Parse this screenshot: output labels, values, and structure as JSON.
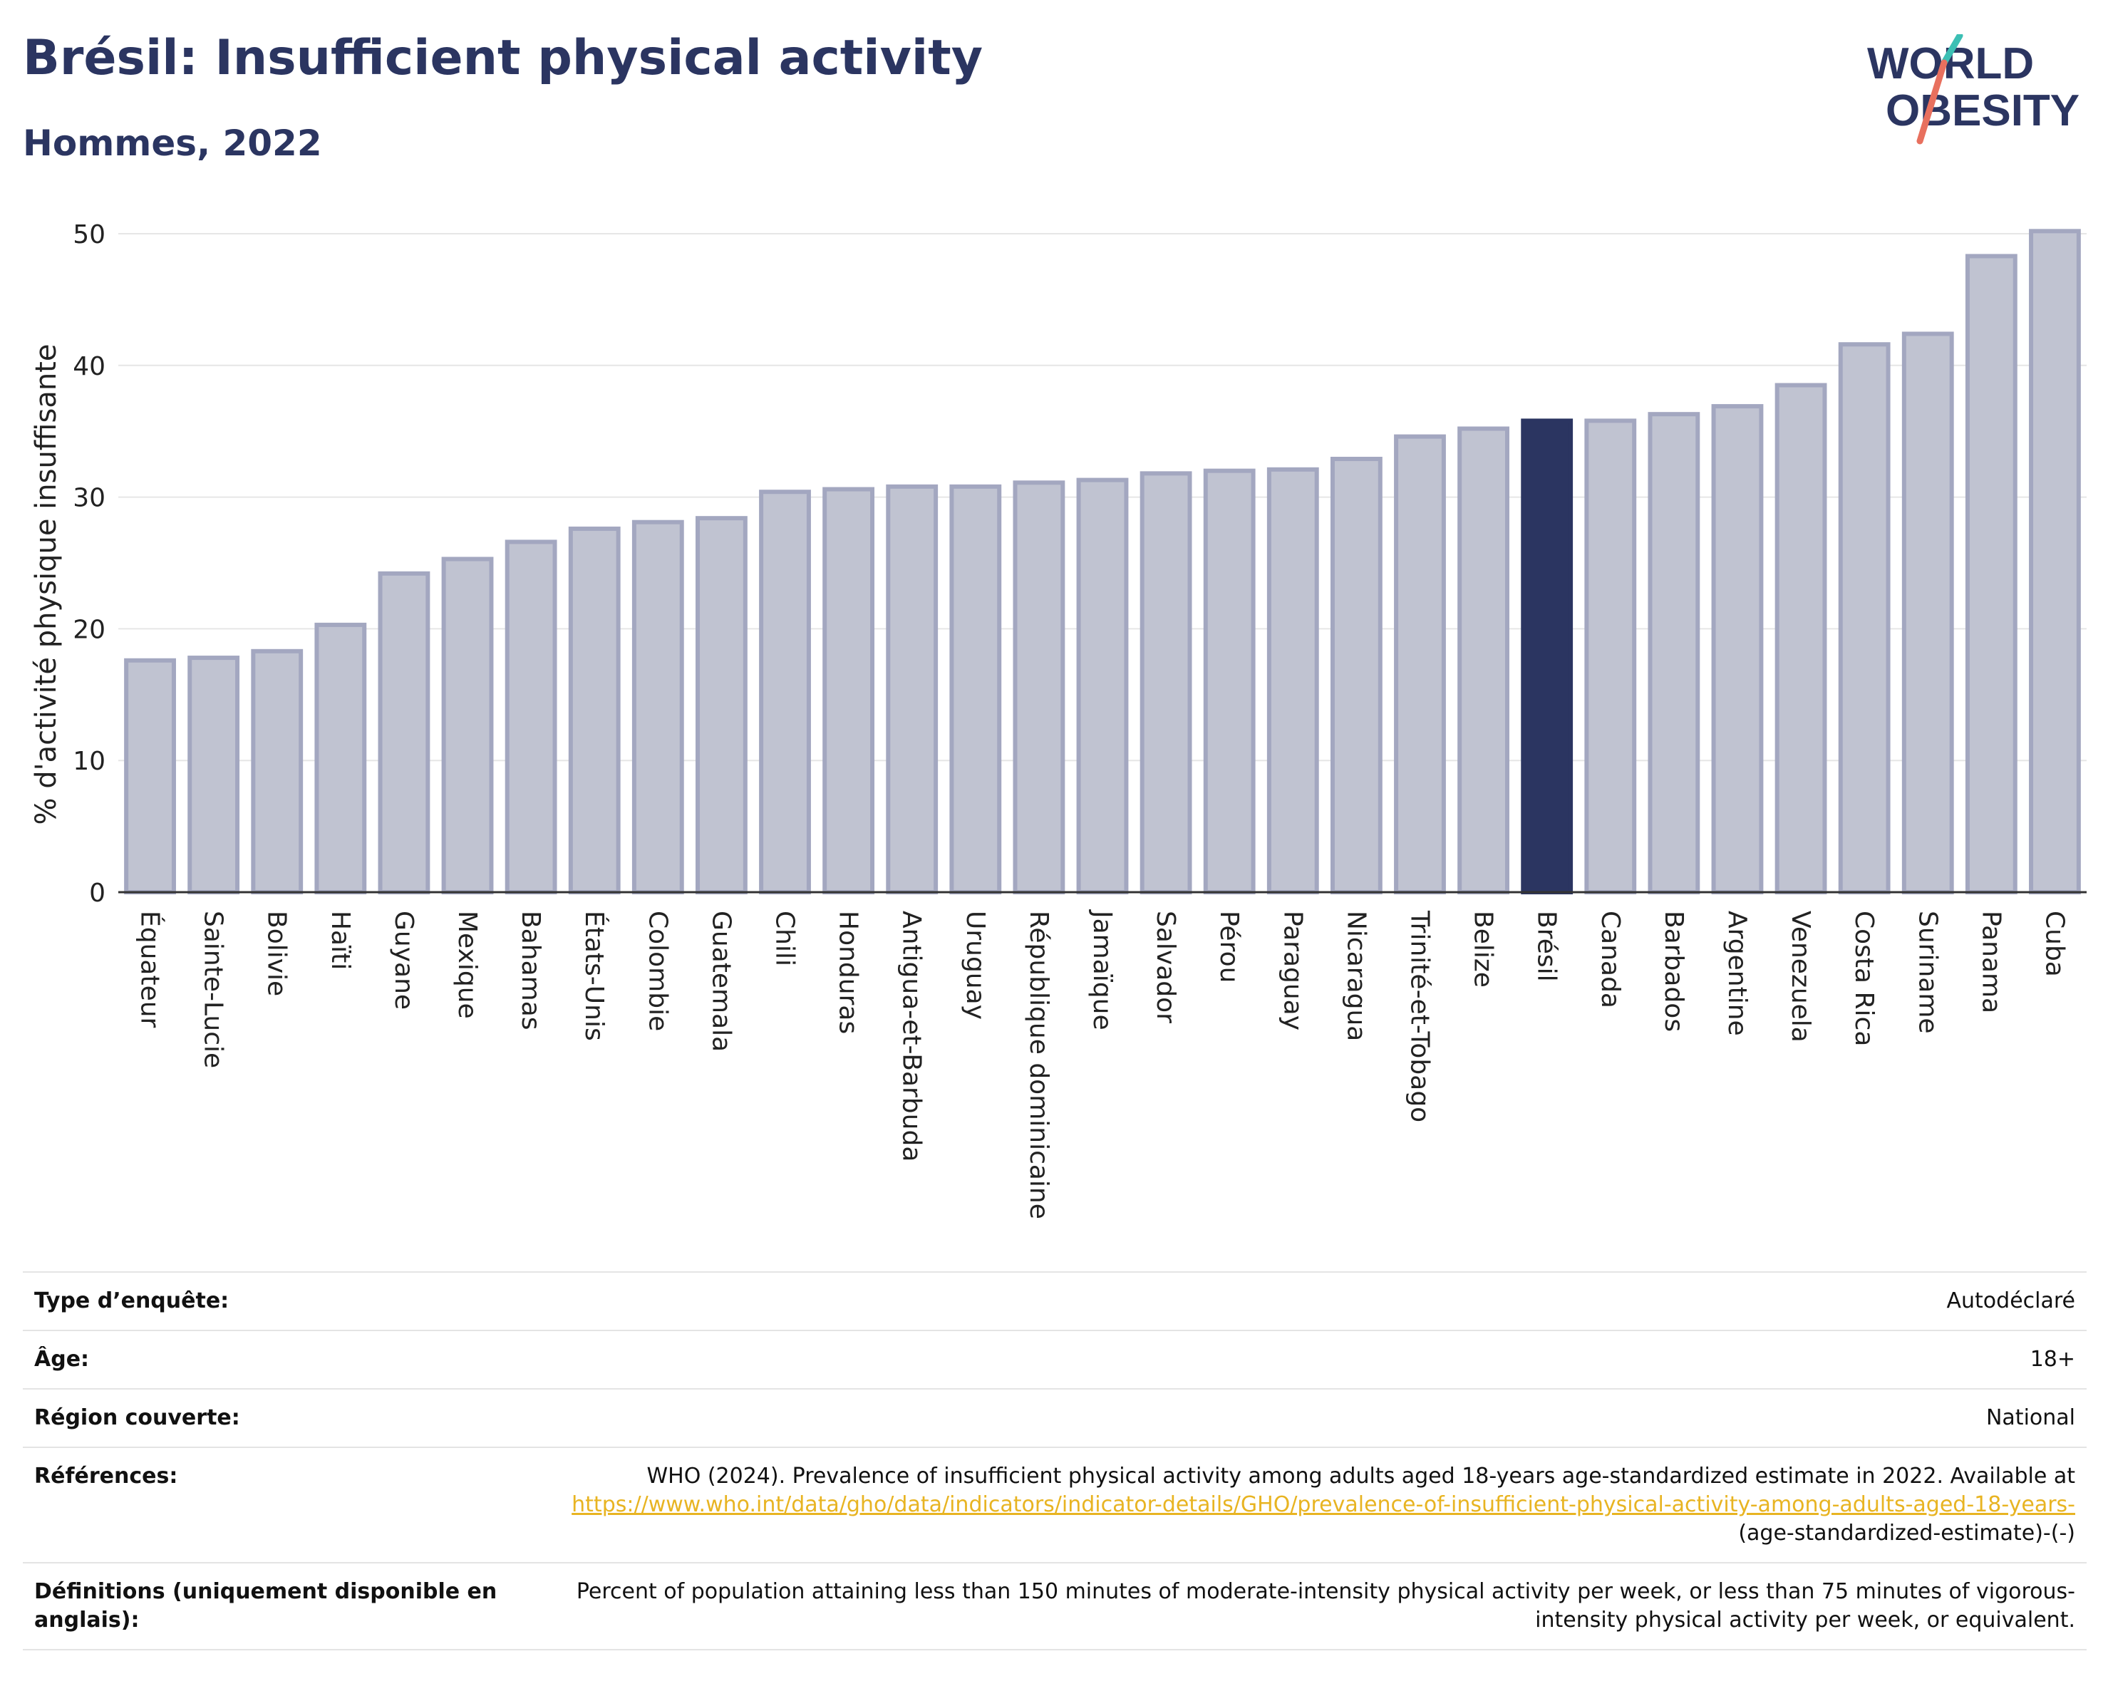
{
  "header": {
    "title": "Brésil: Insufficient physical activity",
    "subtitle": "Hommes, 2022",
    "logo_line1": "WORLD",
    "logo_line2": "OBESITY"
  },
  "colors": {
    "title": "#2b3561",
    "bar": "#c0c3d1",
    "bar_stroke": "#a3a7c0",
    "highlight": "#2b3561",
    "link": "#e8b422"
  },
  "chart_data": {
    "type": "bar",
    "ylabel": "% d'activité physique insuffisante",
    "xlabel": "",
    "ylim": [
      0,
      50
    ],
    "yticks": [
      0,
      10,
      20,
      30,
      40,
      50
    ],
    "grid": true,
    "highlight": "Brésil",
    "categories": [
      "Équateur",
      "Sainte-Lucie",
      "Bolivie",
      "Haïti",
      "Guyane",
      "Mexique",
      "Bahamas",
      "États-Unis",
      "Colombie",
      "Guatemala",
      "Chili",
      "Honduras",
      "Antigua-et-Barbuda",
      "Uruguay",
      "République dominicaine",
      "Jamaïque",
      "Salvador",
      "Pérou",
      "Paraguay",
      "Nicaragua",
      "Trinité-et-Tobago",
      "Belize",
      "Brésil",
      "Canada",
      "Barbados",
      "Argentine",
      "Venezuela",
      "Costa Rica",
      "Suriname",
      "Panama",
      "Cuba"
    ],
    "values": [
      17.6,
      17.8,
      18.3,
      20.3,
      24.2,
      25.3,
      26.6,
      27.6,
      28.1,
      28.4,
      30.4,
      30.6,
      30.8,
      30.8,
      31.1,
      31.3,
      31.8,
      32.0,
      32.1,
      32.9,
      34.6,
      35.2,
      35.8,
      35.8,
      36.3,
      36.9,
      38.5,
      41.6,
      42.4,
      48.3,
      50.2
    ]
  },
  "meta": {
    "survey_label": "Type d’enquête:",
    "survey_value": "Autodéclaré",
    "age_label": "Âge:",
    "age_value": "18+",
    "region_label": "Région couverte:",
    "region_value": "National",
    "refs_label": "Références:",
    "refs_text": "WHO (2024). Prevalence of insufficient physical activity among adults aged 18-years age-standardized estimate in 2022. Available at",
    "refs_link": "https://www.who.int/data/gho/data/indicators/indicator-details/GHO/prevalence-of-insufficient-physical-activity-among-adults-aged-18-years-",
    "refs_suffix": "(age-standardized-estimate)-(-)",
    "defs_label": "Définitions (uniquement disponible en anglais):",
    "defs_value": "Percent of population attaining less than 150 minutes of moderate-intensity physical activity per week, or less than 75 minutes of vigorous-intensity physical activity per week, or equivalent."
  }
}
